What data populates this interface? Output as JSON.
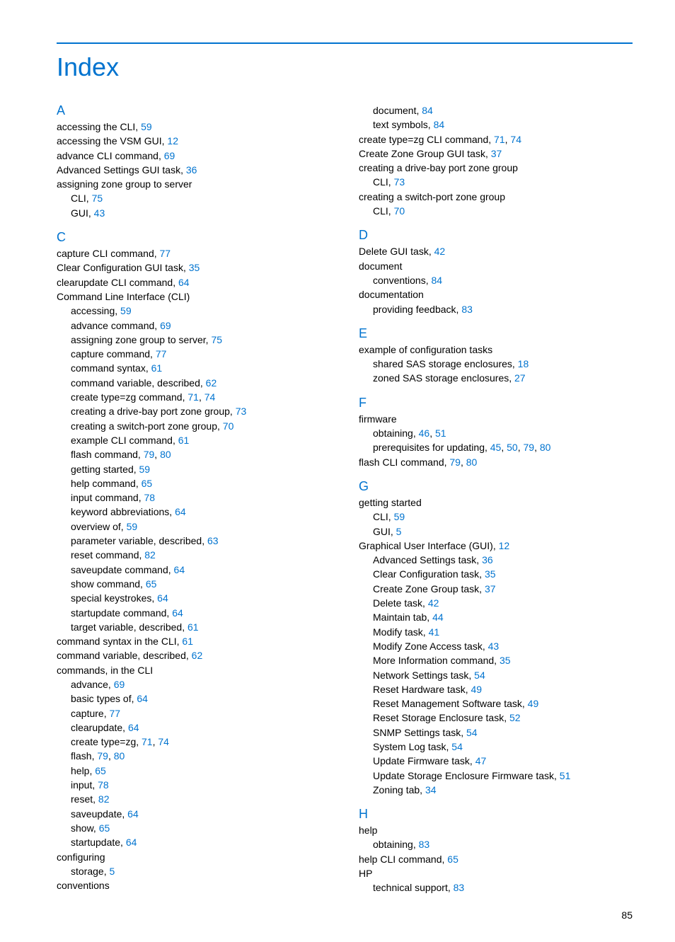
{
  "title": "Index",
  "page_number": "85",
  "colors": {
    "accent": "#0073cf",
    "text": "#000000",
    "background": "#ffffff"
  },
  "left_column": [
    {
      "type": "letter",
      "text": "A"
    },
    {
      "type": "entry",
      "text": "accessing the CLI, ",
      "refs": [
        "59"
      ]
    },
    {
      "type": "entry",
      "text": "accessing the VSM GUI, ",
      "refs": [
        "12"
      ]
    },
    {
      "type": "entry",
      "text": "advance CLI command, ",
      "refs": [
        "69"
      ]
    },
    {
      "type": "entry",
      "text": "Advanced Settings GUI task, ",
      "refs": [
        "36"
      ]
    },
    {
      "type": "entry",
      "text": "assigning zone group to server",
      "refs": []
    },
    {
      "type": "sub",
      "text": "CLI, ",
      "refs": [
        "75"
      ]
    },
    {
      "type": "sub",
      "text": "GUI, ",
      "refs": [
        "43"
      ]
    },
    {
      "type": "letter",
      "text": "C"
    },
    {
      "type": "entry",
      "text": "capture CLI command, ",
      "refs": [
        "77"
      ]
    },
    {
      "type": "entry",
      "text": "Clear Configuration GUI task, ",
      "refs": [
        "35"
      ]
    },
    {
      "type": "entry",
      "text": "clearupdate CLI command, ",
      "refs": [
        "64"
      ]
    },
    {
      "type": "entry",
      "text": "Command Line Interface (CLI)",
      "refs": []
    },
    {
      "type": "sub",
      "text": "accessing, ",
      "refs": [
        "59"
      ]
    },
    {
      "type": "sub",
      "text": "advance command, ",
      "refs": [
        "69"
      ]
    },
    {
      "type": "sub",
      "text": "assigning zone group to server, ",
      "refs": [
        "75"
      ]
    },
    {
      "type": "sub",
      "text": "capture command, ",
      "refs": [
        "77"
      ]
    },
    {
      "type": "sub",
      "text": "command syntax, ",
      "refs": [
        "61"
      ]
    },
    {
      "type": "sub",
      "text": "command variable, described, ",
      "refs": [
        "62"
      ]
    },
    {
      "type": "sub",
      "text": "create type=zg command, ",
      "refs": [
        "71",
        "74"
      ]
    },
    {
      "type": "sub",
      "text": "creating a drive-bay port zone group, ",
      "refs": [
        "73"
      ]
    },
    {
      "type": "sub",
      "text": "creating a switch-port zone group, ",
      "refs": [
        "70"
      ]
    },
    {
      "type": "sub",
      "text": "example CLI command, ",
      "refs": [
        "61"
      ]
    },
    {
      "type": "sub",
      "text": "flash command, ",
      "refs": [
        "79",
        "80"
      ]
    },
    {
      "type": "sub",
      "text": "getting started, ",
      "refs": [
        "59"
      ]
    },
    {
      "type": "sub",
      "text": "help command, ",
      "refs": [
        "65"
      ]
    },
    {
      "type": "sub",
      "text": "input command, ",
      "refs": [
        "78"
      ]
    },
    {
      "type": "sub",
      "text": "keyword abbreviations, ",
      "refs": [
        "64"
      ]
    },
    {
      "type": "sub",
      "text": "overview of, ",
      "refs": [
        "59"
      ]
    },
    {
      "type": "sub",
      "text": "parameter variable, described, ",
      "refs": [
        "63"
      ]
    },
    {
      "type": "sub",
      "text": "reset command, ",
      "refs": [
        "82"
      ]
    },
    {
      "type": "sub",
      "text": "saveupdate command, ",
      "refs": [
        "64"
      ]
    },
    {
      "type": "sub",
      "text": "show command, ",
      "refs": [
        "65"
      ]
    },
    {
      "type": "sub",
      "text": "special keystrokes, ",
      "refs": [
        "64"
      ]
    },
    {
      "type": "sub",
      "text": "startupdate command, ",
      "refs": [
        "64"
      ]
    },
    {
      "type": "sub",
      "text": "target variable, described, ",
      "refs": [
        "61"
      ]
    },
    {
      "type": "entry",
      "text": "command syntax in the CLI, ",
      "refs": [
        "61"
      ]
    },
    {
      "type": "entry",
      "text": "command variable, described, ",
      "refs": [
        "62"
      ]
    },
    {
      "type": "entry",
      "text": "commands, in the CLI",
      "refs": []
    },
    {
      "type": "sub",
      "text": "advance, ",
      "refs": [
        "69"
      ]
    },
    {
      "type": "sub",
      "text": "basic types of, ",
      "refs": [
        "64"
      ]
    },
    {
      "type": "sub",
      "text": "capture, ",
      "refs": [
        "77"
      ]
    },
    {
      "type": "sub",
      "text": "clearupdate, ",
      "refs": [
        "64"
      ]
    },
    {
      "type": "sub",
      "text": "create type=zg, ",
      "refs": [
        "71",
        "74"
      ]
    },
    {
      "type": "sub",
      "text": "flash, ",
      "refs": [
        "79",
        "80"
      ]
    },
    {
      "type": "sub",
      "text": "help, ",
      "refs": [
        "65"
      ]
    },
    {
      "type": "sub",
      "text": "input, ",
      "refs": [
        "78"
      ]
    },
    {
      "type": "sub",
      "text": "reset, ",
      "refs": [
        "82"
      ]
    },
    {
      "type": "sub",
      "text": "saveupdate, ",
      "refs": [
        "64"
      ]
    },
    {
      "type": "sub",
      "text": "show, ",
      "refs": [
        "65"
      ]
    },
    {
      "type": "sub",
      "text": "startupdate, ",
      "refs": [
        "64"
      ]
    },
    {
      "type": "entry",
      "text": "configuring",
      "refs": []
    },
    {
      "type": "sub",
      "text": "storage, ",
      "refs": [
        "5"
      ]
    },
    {
      "type": "entry",
      "text": "conventions",
      "refs": []
    }
  ],
  "right_column": [
    {
      "type": "sub",
      "text": "document, ",
      "refs": [
        "84"
      ]
    },
    {
      "type": "sub",
      "text": "text symbols, ",
      "refs": [
        "84"
      ]
    },
    {
      "type": "entry",
      "text": "create type=zg CLI command, ",
      "refs": [
        "71",
        "74"
      ]
    },
    {
      "type": "entry",
      "text": "Create Zone Group GUI task, ",
      "refs": [
        "37"
      ]
    },
    {
      "type": "entry",
      "text": "creating a drive-bay port zone group",
      "refs": []
    },
    {
      "type": "sub",
      "text": "CLI, ",
      "refs": [
        "73"
      ]
    },
    {
      "type": "entry",
      "text": "creating a switch-port zone group",
      "refs": []
    },
    {
      "type": "sub",
      "text": "CLI, ",
      "refs": [
        "70"
      ]
    },
    {
      "type": "letter",
      "text": "D"
    },
    {
      "type": "entry",
      "text": "Delete GUI task, ",
      "refs": [
        "42"
      ]
    },
    {
      "type": "entry",
      "text": "document",
      "refs": []
    },
    {
      "type": "sub",
      "text": "conventions, ",
      "refs": [
        "84"
      ]
    },
    {
      "type": "entry",
      "text": "documentation",
      "refs": []
    },
    {
      "type": "sub",
      "text": "providing feedback, ",
      "refs": [
        "83"
      ]
    },
    {
      "type": "letter",
      "text": "E"
    },
    {
      "type": "entry",
      "text": "example of configuration tasks",
      "refs": []
    },
    {
      "type": "sub",
      "text": "shared SAS storage enclosures, ",
      "refs": [
        "18"
      ]
    },
    {
      "type": "sub",
      "text": "zoned SAS storage enclosures, ",
      "refs": [
        "27"
      ]
    },
    {
      "type": "letter",
      "text": "F"
    },
    {
      "type": "entry",
      "text": "firmware",
      "refs": []
    },
    {
      "type": "sub",
      "text": "obtaining, ",
      "refs": [
        "46",
        "51"
      ]
    },
    {
      "type": "sub",
      "text": "prerequisites for updating, ",
      "refs": [
        "45",
        "50",
        "79",
        "80"
      ]
    },
    {
      "type": "entry",
      "text": "flash CLI command, ",
      "refs": [
        "79",
        "80"
      ]
    },
    {
      "type": "letter",
      "text": "G"
    },
    {
      "type": "entry",
      "text": "getting started",
      "refs": []
    },
    {
      "type": "sub",
      "text": "CLI, ",
      "refs": [
        "59"
      ]
    },
    {
      "type": "sub",
      "text": "GUI, ",
      "refs": [
        "5"
      ]
    },
    {
      "type": "entry",
      "text": "Graphical User Interface (GUI), ",
      "refs": [
        "12"
      ]
    },
    {
      "type": "sub",
      "text": "Advanced Settings task, ",
      "refs": [
        "36"
      ]
    },
    {
      "type": "sub",
      "text": "Clear Configuration task, ",
      "refs": [
        "35"
      ]
    },
    {
      "type": "sub",
      "text": "Create Zone Group task, ",
      "refs": [
        "37"
      ]
    },
    {
      "type": "sub",
      "text": "Delete task, ",
      "refs": [
        "42"
      ]
    },
    {
      "type": "sub",
      "text": "Maintain tab, ",
      "refs": [
        "44"
      ]
    },
    {
      "type": "sub",
      "text": "Modify task, ",
      "refs": [
        "41"
      ]
    },
    {
      "type": "sub",
      "text": "Modify Zone Access task, ",
      "refs": [
        "43"
      ]
    },
    {
      "type": "sub",
      "text": "More Information command, ",
      "refs": [
        "35"
      ]
    },
    {
      "type": "sub",
      "text": "Network Settings task, ",
      "refs": [
        "54"
      ]
    },
    {
      "type": "sub",
      "text": "Reset Hardware task, ",
      "refs": [
        "49"
      ]
    },
    {
      "type": "sub",
      "text": "Reset Management Software task, ",
      "refs": [
        "49"
      ]
    },
    {
      "type": "sub",
      "text": "Reset Storage Enclosure task, ",
      "refs": [
        "52"
      ]
    },
    {
      "type": "sub",
      "text": "SNMP Settings task, ",
      "refs": [
        "54"
      ]
    },
    {
      "type": "sub",
      "text": "System Log task, ",
      "refs": [
        "54"
      ]
    },
    {
      "type": "sub",
      "text": "Update Firmware task, ",
      "refs": [
        "47"
      ]
    },
    {
      "type": "sub",
      "text": "Update Storage Enclosure Firmware task, ",
      "refs": [
        "51"
      ]
    },
    {
      "type": "sub",
      "text": "Zoning tab, ",
      "refs": [
        "34"
      ]
    },
    {
      "type": "letter",
      "text": "H"
    },
    {
      "type": "entry",
      "text": "help",
      "refs": []
    },
    {
      "type": "sub",
      "text": "obtaining, ",
      "refs": [
        "83"
      ]
    },
    {
      "type": "entry",
      "text": "help CLI command, ",
      "refs": [
        "65"
      ]
    },
    {
      "type": "entry",
      "text": "HP",
      "refs": []
    },
    {
      "type": "sub",
      "text": "technical support, ",
      "refs": [
        "83"
      ]
    }
  ]
}
